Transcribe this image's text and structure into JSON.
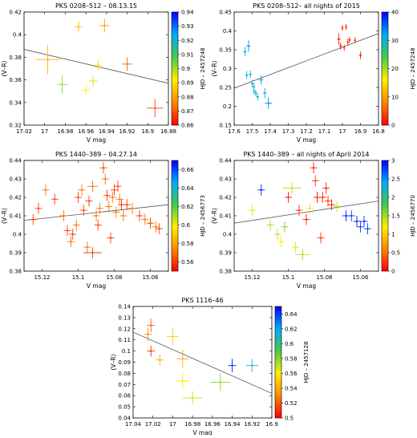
{
  "colorbar_gradient": [
    "#ff0000",
    "#ff8800",
    "#ffee00",
    "#44cc44",
    "#00aaff",
    "#0000ff"
  ],
  "chart_data": [
    {
      "type": "scatter",
      "title": "PKS 0208–512 – 08.13.15",
      "xlabel": "V mag",
      "ylabel": "(V–R)",
      "colorbar_label": "HJD – 2457248",
      "xlim": [
        17.02,
        16.88
      ],
      "ylim": [
        0.32,
        0.42
      ],
      "xticks": [
        "17.02",
        "17",
        "16.98",
        "16.96",
        "16.94",
        "16.92",
        "16.9",
        "16.88"
      ],
      "yticks": [
        "0.32",
        "0.34",
        "0.36",
        "0.38",
        "0.4",
        "0.42"
      ],
      "cticks": [
        "0.86",
        "0.87",
        "0.88",
        "0.89",
        "0.9",
        "0.91",
        "0.92",
        "0.93",
        "0.94"
      ],
      "clim": [
        0.86,
        0.94
      ],
      "fit": [
        [
          17.02,
          0.387
        ],
        [
          16.88,
          0.357
        ]
      ],
      "points": [
        {
          "x": 16.997,
          "y": 0.378,
          "xerr": 0.012,
          "yerr": 0.013,
          "c": 0.882
        },
        {
          "x": 16.983,
          "y": 0.356,
          "xerr": 0.005,
          "yerr": 0.008,
          "c": 0.902
        },
        {
          "x": 16.967,
          "y": 0.407,
          "xerr": 0.004,
          "yerr": 0.005,
          "c": 0.885
        },
        {
          "x": 16.96,
          "y": 0.351,
          "xerr": 0.004,
          "yerr": 0.004,
          "c": 0.892
        },
        {
          "x": 16.953,
          "y": 0.359,
          "xerr": 0.004,
          "yerr": 0.005,
          "c": 0.895
        },
        {
          "x": 16.948,
          "y": 0.373,
          "xerr": 0.004,
          "yerr": 0.005,
          "c": 0.89
        },
        {
          "x": 16.942,
          "y": 0.408,
          "xerr": 0.005,
          "yerr": 0.006,
          "c": 0.878
        },
        {
          "x": 16.92,
          "y": 0.374,
          "xerr": 0.005,
          "yerr": 0.006,
          "c": 0.872
        },
        {
          "x": 16.893,
          "y": 0.335,
          "xerr": 0.008,
          "yerr": 0.008,
          "c": 0.868
        }
      ]
    },
    {
      "type": "scatter",
      "title": "PKS 0208–512– all nights of 2015",
      "xlabel": "V mag",
      "ylabel": "(V–R)",
      "colorbar_label": "HJD – 2457248",
      "xlim": [
        17.6,
        16.8
      ],
      "ylim": [
        0.15,
        0.45
      ],
      "xticks": [
        "17.6",
        "17.5",
        "17.4",
        "17.3",
        "17.2",
        "17.1",
        "17",
        "16.9",
        "16.8"
      ],
      "yticks": [
        "0.15",
        "0.2",
        "0.25",
        "0.3",
        "0.35",
        "0.4",
        "0.45"
      ],
      "cticks": [
        "0",
        "10",
        "20",
        "30",
        "40"
      ],
      "clim": [
        0,
        40
      ],
      "fit": [
        [
          17.6,
          0.248
        ],
        [
          16.8,
          0.393
        ]
      ],
      "points": [
        {
          "x": 17.54,
          "y": 0.345,
          "xerr": 0.01,
          "yerr": 0.012,
          "c": 31
        },
        {
          "x": 17.52,
          "y": 0.36,
          "xerr": 0.012,
          "yerr": 0.015,
          "c": 33
        },
        {
          "x": 17.53,
          "y": 0.283,
          "xerr": 0.008,
          "yerr": 0.01,
          "c": 32
        },
        {
          "x": 17.51,
          "y": 0.285,
          "xerr": 0.008,
          "yerr": 0.01,
          "c": 30
        },
        {
          "x": 17.5,
          "y": 0.26,
          "xerr": 0.008,
          "yerr": 0.01,
          "c": 31
        },
        {
          "x": 17.49,
          "y": 0.252,
          "xerr": 0.007,
          "yerr": 0.01,
          "c": 32
        },
        {
          "x": 17.49,
          "y": 0.24,
          "xerr": 0.007,
          "yerr": 0.009,
          "c": 29
        },
        {
          "x": 17.48,
          "y": 0.235,
          "xerr": 0.007,
          "yerr": 0.009,
          "c": 31
        },
        {
          "x": 17.47,
          "y": 0.225,
          "xerr": 0.008,
          "yerr": 0.01,
          "c": 30
        },
        {
          "x": 17.45,
          "y": 0.27,
          "xerr": 0.01,
          "yerr": 0.012,
          "c": 33
        },
        {
          "x": 17.43,
          "y": 0.235,
          "xerr": 0.01,
          "yerr": 0.014,
          "c": 32
        },
        {
          "x": 17.41,
          "y": 0.208,
          "xerr": 0.02,
          "yerr": 0.015,
          "c": 34
        },
        {
          "x": 17.02,
          "y": 0.378,
          "xerr": 0.01,
          "yerr": 0.015,
          "c": 2
        },
        {
          "x": 17.01,
          "y": 0.36,
          "xerr": 0.008,
          "yerr": 0.01,
          "c": 1
        },
        {
          "x": 17.0,
          "y": 0.408,
          "xerr": 0.006,
          "yerr": 0.008,
          "c": 2
        },
        {
          "x": 16.98,
          "y": 0.41,
          "xerr": 0.005,
          "yerr": 0.008,
          "c": 1
        },
        {
          "x": 16.99,
          "y": 0.355,
          "xerr": 0.006,
          "yerr": 0.008,
          "c": 3
        },
        {
          "x": 16.97,
          "y": 0.37,
          "xerr": 0.006,
          "yerr": 0.009,
          "c": 2
        },
        {
          "x": 16.96,
          "y": 0.376,
          "xerr": 0.006,
          "yerr": 0.008,
          "c": 1
        },
        {
          "x": 16.93,
          "y": 0.375,
          "xerr": 0.006,
          "yerr": 0.008,
          "c": 2
        },
        {
          "x": 16.9,
          "y": 0.335,
          "xerr": 0.008,
          "yerr": 0.01,
          "c": 1
        }
      ]
    },
    {
      "type": "scatter",
      "title": "PKS 1440–389 – 04.27.14",
      "xlabel": "V mag",
      "ylabel": "(V–R)",
      "colorbar_label": "HJD – 2456773",
      "xlim": [
        15.13,
        15.05
      ],
      "ylim": [
        0.38,
        0.44
      ],
      "xticks": [
        "15.12",
        "15.1",
        "15.08",
        "15.06"
      ],
      "xtickvals": [
        15.12,
        15.1,
        15.08,
        15.06
      ],
      "yticks": [
        "0.38",
        "0.39",
        "0.4",
        "0.41",
        "0.42",
        "0.43",
        "0.44"
      ],
      "cticks": [
        "0.56",
        "0.58",
        "0.6",
        "0.62",
        "0.64",
        "0.66"
      ],
      "clim": [
        0.55,
        0.67
      ],
      "fit": [
        [
          15.13,
          0.4075
        ],
        [
          15.05,
          0.416
        ]
      ],
      "points": [
        {
          "x": 15.125,
          "y": 0.408,
          "xerr": 0.002,
          "yerr": 0.003,
          "c": 0.56
        },
        {
          "x": 15.122,
          "y": 0.414,
          "xerr": 0.002,
          "yerr": 0.003,
          "c": 0.56
        },
        {
          "x": 15.118,
          "y": 0.424,
          "xerr": 0.002,
          "yerr": 0.003,
          "c": 0.57
        },
        {
          "x": 15.113,
          "y": 0.419,
          "xerr": 0.002,
          "yerr": 0.003,
          "c": 0.56
        },
        {
          "x": 15.108,
          "y": 0.41,
          "xerr": 0.002,
          "yerr": 0.003,
          "c": 0.57
        },
        {
          "x": 15.106,
          "y": 0.402,
          "xerr": 0.002,
          "yerr": 0.003,
          "c": 0.56
        },
        {
          "x": 15.104,
          "y": 0.396,
          "xerr": 0.002,
          "yerr": 0.003,
          "c": 0.57
        },
        {
          "x": 15.103,
          "y": 0.4,
          "xerr": 0.002,
          "yerr": 0.003,
          "c": 0.56
        },
        {
          "x": 15.101,
          "y": 0.405,
          "xerr": 0.002,
          "yerr": 0.003,
          "c": 0.57
        },
        {
          "x": 15.1,
          "y": 0.42,
          "xerr": 0.002,
          "yerr": 0.003,
          "c": 0.56
        },
        {
          "x": 15.098,
          "y": 0.424,
          "xerr": 0.002,
          "yerr": 0.003,
          "c": 0.57
        },
        {
          "x": 15.097,
          "y": 0.413,
          "xerr": 0.002,
          "yerr": 0.003,
          "c": 0.56
        },
        {
          "x": 15.095,
          "y": 0.393,
          "xerr": 0.002,
          "yerr": 0.003,
          "c": 0.57
        },
        {
          "x": 15.094,
          "y": 0.418,
          "xerr": 0.002,
          "yerr": 0.003,
          "c": 0.56
        },
        {
          "x": 15.092,
          "y": 0.426,
          "xerr": 0.003,
          "yerr": 0.003,
          "c": 0.57
        },
        {
          "x": 15.092,
          "y": 0.39,
          "xerr": 0.005,
          "yerr": 0.003,
          "c": 0.56
        },
        {
          "x": 15.09,
          "y": 0.41,
          "xerr": 0.002,
          "yerr": 0.003,
          "c": 0.57
        },
        {
          "x": 15.089,
          "y": 0.405,
          "xerr": 0.002,
          "yerr": 0.003,
          "c": 0.56
        },
        {
          "x": 15.088,
          "y": 0.414,
          "xerr": 0.002,
          "yerr": 0.003,
          "c": 0.57
        },
        {
          "x": 15.086,
          "y": 0.436,
          "xerr": 0.002,
          "yerr": 0.003,
          "c": 0.56
        },
        {
          "x": 15.085,
          "y": 0.43,
          "xerr": 0.002,
          "yerr": 0.003,
          "c": 0.57
        },
        {
          "x": 15.084,
          "y": 0.421,
          "xerr": 0.002,
          "yerr": 0.003,
          "c": 0.56
        },
        {
          "x": 15.083,
          "y": 0.415,
          "xerr": 0.002,
          "yerr": 0.003,
          "c": 0.57
        },
        {
          "x": 15.082,
          "y": 0.398,
          "xerr": 0.002,
          "yerr": 0.003,
          "c": 0.56
        },
        {
          "x": 15.081,
          "y": 0.42,
          "xerr": 0.002,
          "yerr": 0.003,
          "c": 0.57
        },
        {
          "x": 15.08,
          "y": 0.424,
          "xerr": 0.002,
          "yerr": 0.003,
          "c": 0.56
        },
        {
          "x": 15.079,
          "y": 0.412,
          "xerr": 0.002,
          "yerr": 0.003,
          "c": 0.57
        },
        {
          "x": 15.078,
          "y": 0.426,
          "xerr": 0.002,
          "yerr": 0.003,
          "c": 0.56
        },
        {
          "x": 15.077,
          "y": 0.419,
          "xerr": 0.002,
          "yerr": 0.003,
          "c": 0.57
        },
        {
          "x": 15.076,
          "y": 0.416,
          "xerr": 0.002,
          "yerr": 0.003,
          "c": 0.56
        },
        {
          "x": 15.075,
          "y": 0.41,
          "xerr": 0.002,
          "yerr": 0.003,
          "c": 0.57
        },
        {
          "x": 15.073,
          "y": 0.416,
          "xerr": 0.002,
          "yerr": 0.003,
          "c": 0.56
        },
        {
          "x": 15.07,
          "y": 0.414,
          "xerr": 0.002,
          "yerr": 0.003,
          "c": 0.57
        },
        {
          "x": 15.066,
          "y": 0.41,
          "xerr": 0.002,
          "yerr": 0.003,
          "c": 0.56
        },
        {
          "x": 15.063,
          "y": 0.408,
          "xerr": 0.002,
          "yerr": 0.003,
          "c": 0.57
        },
        {
          "x": 15.06,
          "y": 0.406,
          "xerr": 0.002,
          "yerr": 0.003,
          "c": 0.56
        },
        {
          "x": 15.057,
          "y": 0.404,
          "xerr": 0.002,
          "yerr": 0.003,
          "c": 0.57
        },
        {
          "x": 15.055,
          "y": 0.403,
          "xerr": 0.002,
          "yerr": 0.003,
          "c": 0.56
        }
      ]
    },
    {
      "type": "scatter",
      "title": "PKS 1440–389 – all nights of April 2014",
      "xlabel": "V mag",
      "ylabel": "(V–R)",
      "colorbar_label": "HJD – 2456770",
      "xlim": [
        15.13,
        15.05
      ],
      "ylim": [
        0.38,
        0.44
      ],
      "xticks": [
        "15.12",
        "15.1",
        "15.08",
        "15.06"
      ],
      "xtickvals": [
        15.12,
        15.1,
        15.08,
        15.06
      ],
      "yticks": [
        "0.38",
        "0.39",
        "0.4",
        "0.41",
        "0.42",
        "0.43",
        "0.44"
      ],
      "cticks": [
        "0",
        "0.5",
        "1",
        "1.5",
        "2",
        "2.5",
        "3"
      ],
      "clim": [
        0,
        3
      ],
      "fit": [
        [
          15.13,
          0.406
        ],
        [
          15.05,
          0.418
        ]
      ],
      "points": [
        {
          "x": 15.12,
          "y": 0.413,
          "xerr": 0.002,
          "yerr": 0.003,
          "c": 1.3
        },
        {
          "x": 15.115,
          "y": 0.424,
          "xerr": 0.002,
          "yerr": 0.003,
          "c": 2.9
        },
        {
          "x": 15.11,
          "y": 0.405,
          "xerr": 0.002,
          "yerr": 0.003,
          "c": 1.5
        },
        {
          "x": 15.106,
          "y": 0.4,
          "xerr": 0.002,
          "yerr": 0.003,
          "c": 1.4
        },
        {
          "x": 15.104,
          "y": 0.396,
          "xerr": 0.002,
          "yerr": 0.003,
          "c": 1.2
        },
        {
          "x": 15.102,
          "y": 0.404,
          "xerr": 0.002,
          "yerr": 0.003,
          "c": 1.6
        },
        {
          "x": 15.1,
          "y": 0.42,
          "xerr": 0.002,
          "yerr": 0.003,
          "c": 0.1
        },
        {
          "x": 15.098,
          "y": 0.425,
          "xerr": 0.005,
          "yerr": 0.003,
          "c": 1.4
        },
        {
          "x": 15.096,
          "y": 0.393,
          "xerr": 0.002,
          "yerr": 0.003,
          "c": 1.3
        },
        {
          "x": 15.094,
          "y": 0.413,
          "xerr": 0.002,
          "yerr": 0.003,
          "c": 0.2
        },
        {
          "x": 15.092,
          "y": 0.389,
          "xerr": 0.004,
          "yerr": 0.003,
          "c": 1.5
        },
        {
          "x": 15.09,
          "y": 0.408,
          "xerr": 0.002,
          "yerr": 0.003,
          "c": 0.1
        },
        {
          "x": 15.088,
          "y": 0.414,
          "xerr": 0.002,
          "yerr": 0.003,
          "c": 1.3
        },
        {
          "x": 15.086,
          "y": 0.436,
          "xerr": 0.002,
          "yerr": 0.003,
          "c": 0.1
        },
        {
          "x": 15.085,
          "y": 0.429,
          "xerr": 0.002,
          "yerr": 0.003,
          "c": 0.2
        },
        {
          "x": 15.084,
          "y": 0.42,
          "xerr": 0.002,
          "yerr": 0.003,
          "c": 0.1
        },
        {
          "x": 15.082,
          "y": 0.398,
          "xerr": 0.002,
          "yerr": 0.003,
          "c": 0.2
        },
        {
          "x": 15.081,
          "y": 0.42,
          "xerr": 0.002,
          "yerr": 0.003,
          "c": 0.1
        },
        {
          "x": 15.079,
          "y": 0.425,
          "xerr": 0.002,
          "yerr": 0.003,
          "c": 0.1
        },
        {
          "x": 15.078,
          "y": 0.418,
          "xerr": 0.002,
          "yerr": 0.003,
          "c": 0.2
        },
        {
          "x": 15.076,
          "y": 0.416,
          "xerr": 0.002,
          "yerr": 0.003,
          "c": 0.1
        },
        {
          "x": 15.073,
          "y": 0.415,
          "xerr": 0.002,
          "yerr": 0.003,
          "c": 1.4
        },
        {
          "x": 15.068,
          "y": 0.41,
          "xerr": 0.002,
          "yerr": 0.003,
          "c": 2.9
        },
        {
          "x": 15.065,
          "y": 0.41,
          "xerr": 0.002,
          "yerr": 0.003,
          "c": 2.8
        },
        {
          "x": 15.062,
          "y": 0.407,
          "xerr": 0.002,
          "yerr": 0.003,
          "c": 2.9
        },
        {
          "x": 15.06,
          "y": 0.404,
          "xerr": 0.002,
          "yerr": 0.003,
          "c": 2.8
        },
        {
          "x": 15.058,
          "y": 0.407,
          "xerr": 0.002,
          "yerr": 0.003,
          "c": 2.9
        },
        {
          "x": 15.056,
          "y": 0.403,
          "xerr": 0.002,
          "yerr": 0.003,
          "c": 2.8
        }
      ]
    },
    {
      "type": "scatter",
      "title": "PKS 1116–46",
      "xlabel": "V mag",
      "ylabel": "(V–R)",
      "colorbar_label": "HJD – 2457128",
      "xlim": [
        17.04,
        16.9
      ],
      "ylim": [
        0.04,
        0.14
      ],
      "xticks": [
        "17.04",
        "17.02",
        "17",
        "16.98",
        "16.96",
        "16.94",
        "16.92",
        "16.9"
      ],
      "yticks": [
        "0.04",
        "0.05",
        "0.06",
        "0.07",
        "0.08",
        "0.09",
        "0.1",
        "0.11",
        "0.12",
        "0.13",
        "0.14"
      ],
      "cticks": [
        "0.5",
        "0.52",
        "0.54",
        "0.56",
        "0.58",
        "0.6",
        "0.62",
        "0.64"
      ],
      "clim": [
        0.5,
        0.65
      ],
      "fit": [
        [
          17.04,
          0.117
        ],
        [
          16.9,
          0.062
        ]
      ],
      "points": [
        {
          "x": 17.022,
          "y": 0.123,
          "xerr": 0.004,
          "yerr": 0.006,
          "c": 0.52
        },
        {
          "x": 17.025,
          "y": 0.115,
          "xerr": 0.004,
          "yerr": 0.006,
          "c": 0.53
        },
        {
          "x": 17.022,
          "y": 0.1,
          "xerr": 0.004,
          "yerr": 0.005,
          "c": 0.51
        },
        {
          "x": 17.013,
          "y": 0.092,
          "xerr": 0.004,
          "yerr": 0.005,
          "c": 0.54
        },
        {
          "x": 17.0,
          "y": 0.113,
          "xerr": 0.006,
          "yerr": 0.008,
          "c": 0.55
        },
        {
          "x": 16.99,
          "y": 0.093,
          "xerr": 0.006,
          "yerr": 0.008,
          "c": 0.54
        },
        {
          "x": 16.99,
          "y": 0.073,
          "xerr": 0.007,
          "yerr": 0.007,
          "c": 0.56
        },
        {
          "x": 16.98,
          "y": 0.058,
          "xerr": 0.01,
          "yerr": 0.006,
          "c": 0.57
        },
        {
          "x": 16.952,
          "y": 0.072,
          "xerr": 0.01,
          "yerr": 0.008,
          "c": 0.58
        },
        {
          "x": 16.94,
          "y": 0.087,
          "xerr": 0.004,
          "yerr": 0.006,
          "c": 0.645
        },
        {
          "x": 16.92,
          "y": 0.087,
          "xerr": 0.006,
          "yerr": 0.006,
          "c": 0.61
        }
      ]
    }
  ]
}
